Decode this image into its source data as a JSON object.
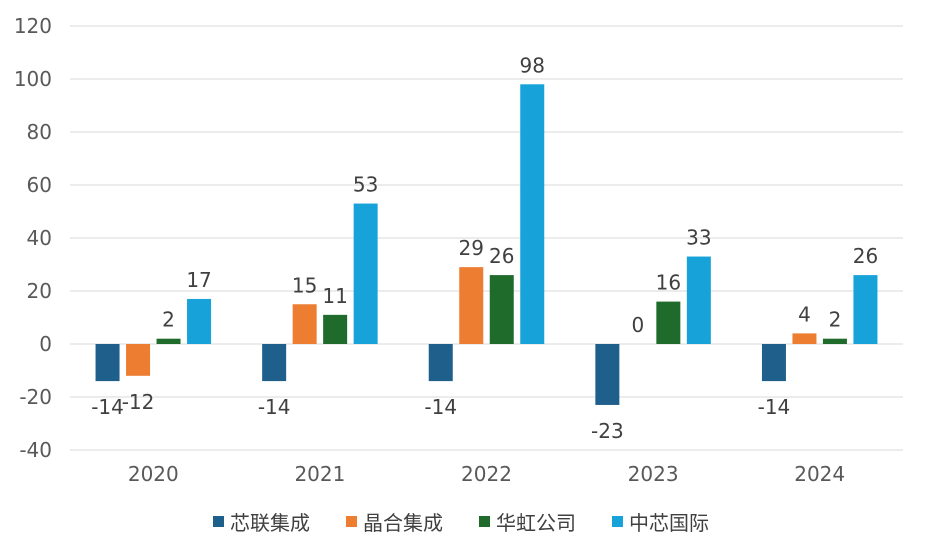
{
  "chart_data": {
    "type": "bar",
    "title": "",
    "xlabel": "",
    "ylabel": "",
    "ylim": [
      -40,
      120
    ],
    "yticks": [
      120,
      100,
      80,
      60,
      40,
      20,
      0,
      -20,
      -40
    ],
    "grid": true,
    "legend_position": "bottom",
    "categories": [
      "2020",
      "2021",
      "2022",
      "2023",
      "2024"
    ],
    "series": [
      {
        "name": "芯联集成",
        "color": "#1f5f8b",
        "values": [
          -14,
          -14,
          -14,
          -23,
          -14
        ]
      },
      {
        "name": "晶合集成",
        "color": "#ed7d31",
        "values": [
          -12,
          15,
          29,
          0,
          4
        ]
      },
      {
        "name": "华虹公司",
        "color": "#1e6b2b",
        "values": [
          2,
          11,
          26,
          16,
          2
        ]
      },
      {
        "name": "中芯国际",
        "color": "#17a2d9",
        "values": [
          17,
          53,
          98,
          33,
          26
        ]
      }
    ]
  }
}
